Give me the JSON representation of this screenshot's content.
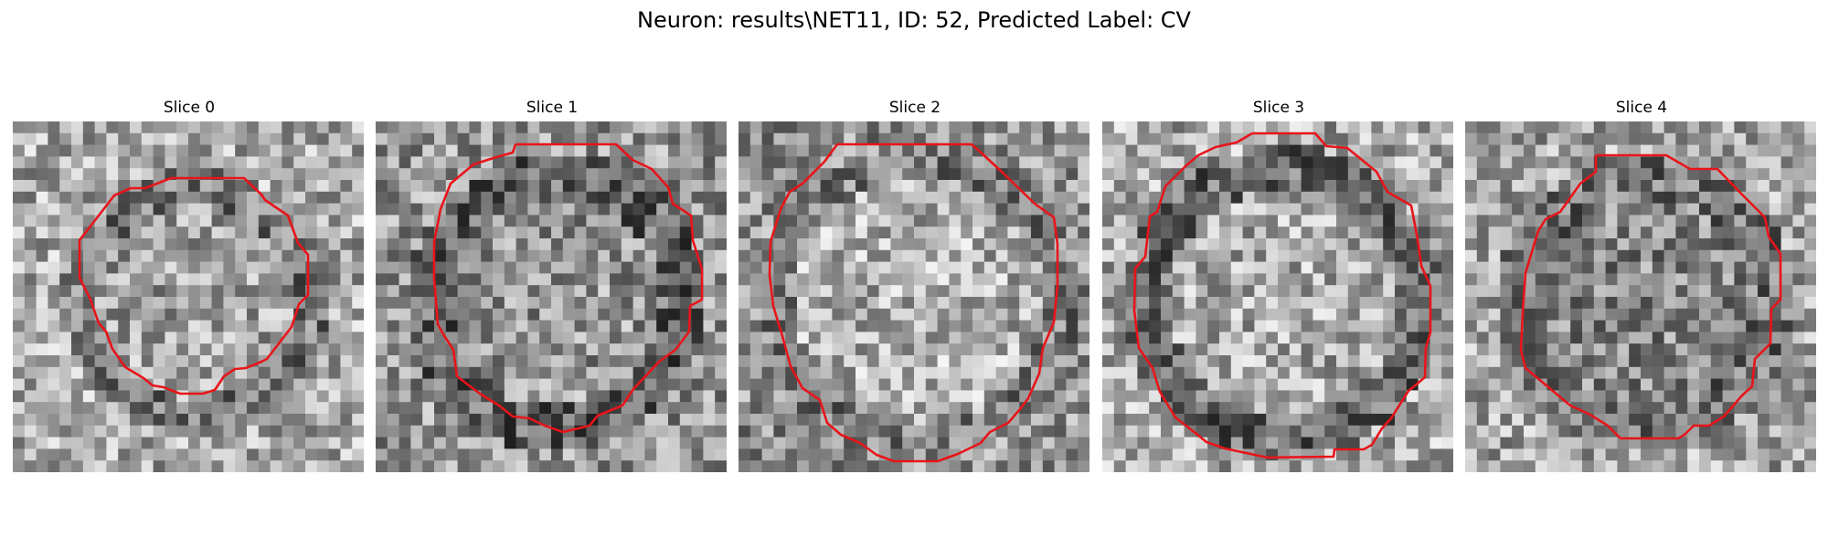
{
  "figure": {
    "title": "Neuron: results\\NET11, ID: 52, Predicted Label: CV"
  },
  "colors": {
    "contour": "#e8141a",
    "background": "#ffffff"
  },
  "colormap": "grayscale",
  "panels": [
    {
      "title": "Slice 0"
    },
    {
      "title": "Slice 1"
    },
    {
      "title": "Slice 2"
    },
    {
      "title": "Slice 3"
    },
    {
      "title": "Slice 4"
    }
  ]
}
